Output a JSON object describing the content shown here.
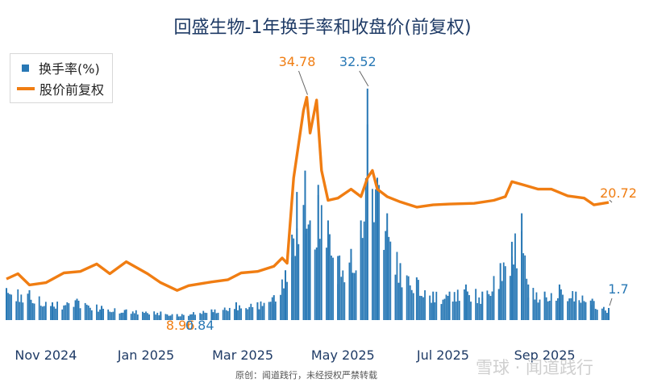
{
  "title": "回盛生物-1年换手率和收盘价(前复权)",
  "legend": {
    "turnover": "换手率(%)",
    "price": "股价前复权"
  },
  "source_note": "原创：闻道践行，未经授权严禁转载",
  "watermark": "雪球 · 闻道践行",
  "colors": {
    "bar": "#2878b5",
    "line": "#f07d12",
    "title": "#1f3b66"
  },
  "chart_data": {
    "type": "bar+line",
    "x_start": "2024-10-08",
    "x_end": "2025-10-10",
    "x_ticks": [
      {
        "label": "Nov 2024",
        "date": "2024-11-01"
      },
      {
        "label": "Jan 2025",
        "date": "2025-01-01"
      },
      {
        "label": "Mar 2025",
        "date": "2025-03-01"
      },
      {
        "label": "May 2025",
        "date": "2025-05-01"
      },
      {
        "label": "Jul 2025",
        "date": "2025-07-01"
      },
      {
        "label": "Sep 2025",
        "date": "2025-09-01"
      }
    ],
    "series": [
      {
        "name": "换手率(%)",
        "kind": "bar",
        "ylim": [
          0,
          35
        ],
        "points": [
          [
            "2024-10-08",
            4.5
          ],
          [
            "2024-10-22",
            4.2
          ],
          [
            "2024-11-05",
            2.5
          ],
          [
            "2024-11-20",
            3.0
          ],
          [
            "2024-12-05",
            2.0
          ],
          [
            "2024-12-20",
            1.5
          ],
          [
            "2025-01-10",
            1.2
          ],
          [
            "2025-01-20",
            0.84
          ],
          [
            "2025-02-10",
            1.5
          ],
          [
            "2025-02-25",
            2.5
          ],
          [
            "2025-03-10",
            2.5
          ],
          [
            "2025-03-20",
            3.5
          ],
          [
            "2025-03-27",
            7.0
          ],
          [
            "2025-03-31",
            12.0
          ],
          [
            "2025-04-03",
            18.0
          ],
          [
            "2025-04-08",
            21.0
          ],
          [
            "2025-04-11",
            14.0
          ],
          [
            "2025-04-16",
            19.0
          ],
          [
            "2025-04-22",
            14.0
          ],
          [
            "2025-04-28",
            9.0
          ],
          [
            "2025-05-06",
            10.0
          ],
          [
            "2025-05-12",
            14.0
          ],
          [
            "2025-05-16",
            32.52
          ],
          [
            "2025-05-22",
            20.0
          ],
          [
            "2025-05-28",
            15.0
          ],
          [
            "2025-06-05",
            8.0
          ],
          [
            "2025-06-15",
            6.0
          ],
          [
            "2025-06-25",
            4.0
          ],
          [
            "2025-07-05",
            4.0
          ],
          [
            "2025-07-15",
            5.0
          ],
          [
            "2025-07-25",
            4.0
          ],
          [
            "2025-08-05",
            8.0
          ],
          [
            "2025-08-12",
            11.0
          ],
          [
            "2025-08-18",
            15.0
          ],
          [
            "2025-08-22",
            5.0
          ],
          [
            "2025-09-01",
            4.0
          ],
          [
            "2025-09-10",
            5.0
          ],
          [
            "2025-09-20",
            4.0
          ],
          [
            "2025-09-30",
            3.0
          ],
          [
            "2025-10-10",
            1.7
          ]
        ]
      },
      {
        "name": "股价前复权",
        "kind": "line",
        "ylim": [
          5,
          37
        ],
        "points": [
          [
            "2024-10-08",
            10.5
          ],
          [
            "2024-10-15",
            11.2
          ],
          [
            "2024-10-22",
            9.7
          ],
          [
            "2024-11-01",
            10.0
          ],
          [
            "2024-11-12",
            11.3
          ],
          [
            "2024-11-22",
            11.5
          ],
          [
            "2024-12-02",
            12.5
          ],
          [
            "2024-12-10",
            11.2
          ],
          [
            "2024-12-20",
            12.8
          ],
          [
            "2025-01-02",
            11.2
          ],
          [
            "2025-01-10",
            10.0
          ],
          [
            "2025-01-20",
            8.96
          ],
          [
            "2025-01-27",
            9.6
          ],
          [
            "2025-02-10",
            10.1
          ],
          [
            "2025-02-20",
            10.4
          ],
          [
            "2025-02-28",
            11.3
          ],
          [
            "2025-03-10",
            11.5
          ],
          [
            "2025-03-20",
            12.2
          ],
          [
            "2025-03-25",
            13.3
          ],
          [
            "2025-03-28",
            12.6
          ],
          [
            "2025-04-01",
            24.0
          ],
          [
            "2025-04-07",
            33.0
          ],
          [
            "2025-04-09",
            34.78
          ],
          [
            "2025-04-11",
            30.0
          ],
          [
            "2025-04-15",
            34.4
          ],
          [
            "2025-04-18",
            25.0
          ],
          [
            "2025-04-22",
            21.0
          ],
          [
            "2025-04-28",
            21.3
          ],
          [
            "2025-05-06",
            22.5
          ],
          [
            "2025-05-12",
            21.5
          ],
          [
            "2025-05-16",
            24.0
          ],
          [
            "2025-05-19",
            25.0
          ],
          [
            "2025-05-22",
            22.5
          ],
          [
            "2025-05-28",
            21.5
          ],
          [
            "2025-06-05",
            20.8
          ],
          [
            "2025-06-15",
            20.1
          ],
          [
            "2025-06-25",
            20.4
          ],
          [
            "2025-07-05",
            20.5
          ],
          [
            "2025-07-20",
            20.6
          ],
          [
            "2025-08-01",
            21.0
          ],
          [
            "2025-08-08",
            21.5
          ],
          [
            "2025-08-12",
            23.5
          ],
          [
            "2025-08-20",
            23.0
          ],
          [
            "2025-08-28",
            22.5
          ],
          [
            "2025-09-05",
            22.5
          ],
          [
            "2025-09-15",
            21.6
          ],
          [
            "2025-09-25",
            21.3
          ],
          [
            "2025-10-01",
            20.4
          ],
          [
            "2025-10-10",
            20.72
          ]
        ]
      }
    ],
    "annotations": [
      {
        "text": "34.78",
        "series": "price",
        "date": "2025-04-09",
        "value": 34.78
      },
      {
        "text": "32.52",
        "series": "turnover",
        "date": "2025-05-16",
        "value": 32.52
      },
      {
        "text": "20.72",
        "series": "price",
        "date": "2025-10-10",
        "value": 20.72
      },
      {
        "text": "1.7",
        "series": "turnover",
        "date": "2025-10-10",
        "value": 1.7
      },
      {
        "text": "8.96",
        "series": "price",
        "date": "2025-01-20",
        "value": 8.96
      },
      {
        "text": "0.84",
        "series": "turnover",
        "date": "2025-01-20",
        "value": 0.84
      }
    ]
  }
}
